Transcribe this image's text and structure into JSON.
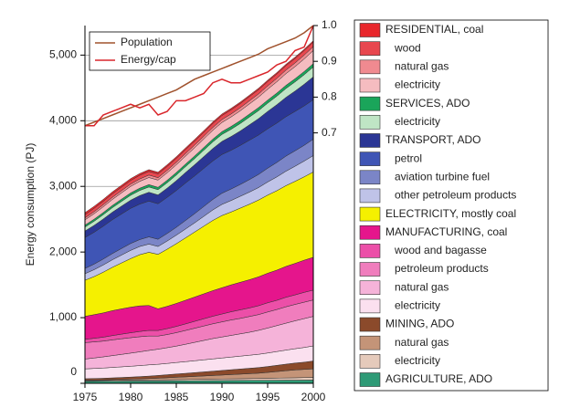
{
  "chart_data": {
    "type": "stacked_area",
    "y_label": "Energy consumption (PJ)",
    "x": [
      1975,
      1976,
      1977,
      1978,
      1979,
      1980,
      1981,
      1982,
      1983,
      1984,
      1985,
      1986,
      1987,
      1988,
      1989,
      1990,
      1991,
      1992,
      1993,
      1994,
      1995,
      1996,
      1997,
      1998,
      1999,
      2000
    ],
    "xlim": [
      1975,
      2000
    ],
    "xticks": [
      1975,
      1980,
      1985,
      1990,
      1995,
      2000
    ],
    "ylim": [
      0,
      5450
    ],
    "yticks": [
      0,
      {
        "value": 1000,
        "label": "1,000"
      },
      {
        "value": 2000,
        "label": "2,000"
      },
      {
        "value": 3000,
        "label": "3,000"
      },
      {
        "value": 4000,
        "label": "4,000"
      },
      {
        "value": 5000,
        "label": "5,000"
      }
    ],
    "y2lim": [
      0,
      1
    ],
    "y2ticks": [
      0.7,
      0.8,
      0.9,
      {
        "value": 1,
        "label": "1.0"
      }
    ],
    "grid": true,
    "series": [
      {
        "name": "RESIDENTIAL, coal",
        "color": "#e8262b",
        "values": [
          30,
          30,
          29,
          29,
          28,
          28,
          27,
          27,
          26,
          26,
          25,
          25,
          25,
          24,
          24,
          23,
          23,
          23,
          22,
          22,
          22,
          21,
          21,
          21,
          20,
          20
        ]
      },
      {
        "name": "wood",
        "color": "#e8474f",
        "values": [
          50,
          51,
          52,
          53,
          54,
          55,
          56,
          56,
          57,
          58,
          58,
          59,
          60,
          60,
          61,
          62,
          63,
          63,
          64,
          65,
          66,
          67,
          68,
          68,
          69,
          70
        ]
      },
      {
        "name": "natural gas",
        "color": "#f08a90",
        "values": [
          30,
          31,
          32,
          33,
          34,
          35,
          36,
          37,
          37,
          38,
          39,
          40,
          41,
          42,
          43,
          44,
          45,
          46,
          47,
          48,
          50,
          52,
          54,
          56,
          58,
          60
        ]
      },
      {
        "name": "electricity",
        "color": "#f5bcc0",
        "values": [
          80,
          84,
          88,
          92,
          96,
          100,
          104,
          108,
          110,
          114,
          118,
          122,
          126,
          130,
          135,
          140,
          145,
          150,
          155,
          160,
          166,
          172,
          178,
          184,
          192,
          200
        ]
      },
      {
        "name": "SERVICES, ADO",
        "color": "#1aa55a",
        "values": [
          30,
          31,
          32,
          33,
          34,
          35,
          35,
          36,
          36,
          37,
          38,
          38,
          39,
          40,
          41,
          42,
          43,
          44,
          45,
          46,
          46,
          47,
          48,
          48,
          49,
          50
        ]
      },
      {
        "name": "electricity",
        "color": "#bfe5c5",
        "values": [
          60,
          63,
          66,
          69,
          72,
          75,
          78,
          80,
          80,
          83,
          86,
          90,
          94,
          98,
          102,
          106,
          110,
          114,
          118,
          122,
          126,
          130,
          135,
          140,
          145,
          150
        ]
      },
      {
        "name": "TRANSPORT, ADO",
        "color": "#2b3695",
        "values": [
          100,
          105,
          110,
          115,
          120,
          125,
          130,
          135,
          135,
          140,
          150,
          160,
          170,
          180,
          190,
          200,
          210,
          220,
          235,
          250,
          265,
          280,
          295,
          310,
          330,
          350
        ]
      },
      {
        "name": "petrol",
        "color": "#3f55b5",
        "values": [
          470,
          485,
          500,
          515,
          525,
          535,
          540,
          545,
          540,
          550,
          560,
          570,
          575,
          580,
          585,
          590,
          590,
          595,
          600,
          600,
          600,
          600,
          600,
          600,
          600,
          600
        ]
      },
      {
        "name": "aviation turbine fuel",
        "color": "#7b85c7",
        "values": [
          80,
          85,
          90,
          95,
          100,
          105,
          105,
          110,
          110,
          115,
          120,
          130,
          140,
          150,
          160,
          170,
          175,
          180,
          190,
          200,
          210,
          220,
          230,
          235,
          240,
          250
        ]
      },
      {
        "name": "other petroleum products",
        "color": "#bfc3e8",
        "values": [
          100,
          105,
          110,
          115,
          120,
          125,
          125,
          125,
          120,
          125,
          130,
          135,
          140,
          150,
          160,
          170,
          175,
          180,
          185,
          190,
          200,
          210,
          220,
          230,
          240,
          250
        ]
      },
      {
        "name": "ELECTRICITY, mostly coal",
        "color": "#f5f000",
        "values": [
          550,
          580,
          620,
          660,
          700,
          740,
          780,
          810,
          830,
          870,
          910,
          950,
          990,
          1030,
          1070,
          1100,
          1110,
          1130,
          1150,
          1170,
          1190,
          1210,
          1230,
          1250,
          1270,
          1300
        ]
      },
      {
        "name": "MANUFACTURING, coal",
        "color": "#e5158c",
        "values": [
          350,
          360,
          370,
          380,
          385,
          390,
          390,
          380,
          330,
          340,
          350,
          360,
          370,
          380,
          390,
          400,
          410,
          420,
          430,
          440,
          450,
          460,
          470,
          480,
          490,
          500
        ]
      },
      {
        "name": "wood and bagasse",
        "color": "#ec4fa8",
        "values": [
          50,
          55,
          60,
          65,
          70,
          75,
          80,
          85,
          85,
          90,
          95,
          100,
          105,
          110,
          115,
          120,
          125,
          130,
          130,
          135,
          140,
          140,
          145,
          145,
          150,
          150
        ]
      },
      {
        "name": "petroleum products",
        "color": "#f07dbd",
        "values": [
          250,
          245,
          240,
          240,
          238,
          235,
          230,
          220,
          200,
          200,
          205,
          210,
          215,
          220,
          225,
          230,
          235,
          235,
          240,
          240,
          245,
          245,
          250,
          250,
          250,
          250
        ]
      },
      {
        "name": "natural gas",
        "color": "#f5b3d9",
        "values": [
          150,
          160,
          170,
          180,
          190,
          200,
          210,
          220,
          230,
          240,
          250,
          265,
          280,
          295,
          310,
          320,
          330,
          340,
          350,
          365,
          380,
          395,
          410,
          425,
          440,
          450
        ]
      },
      {
        "name": "electricity",
        "color": "#fbe0ef",
        "values": [
          150,
          153,
          156,
          159,
          162,
          165,
          168,
          171,
          170,
          172,
          175,
          178,
          181,
          184,
          187,
          190,
          193,
          196,
          199,
          202,
          206,
          210,
          214,
          218,
          224,
          230
        ]
      },
      {
        "name": "MINING, ADO",
        "color": "#8b4a2b",
        "values": [
          20,
          22,
          24,
          26,
          28,
          30,
          34,
          38,
          42,
          46,
          50,
          54,
          58,
          62,
          66,
          70,
          74,
          78,
          82,
          86,
          90,
          95,
          100,
          105,
          110,
          120
        ]
      },
      {
        "name": "natural gas",
        "color": "#c49478",
        "values": [
          10,
          10,
          10,
          12,
          14,
          16,
          18,
          20,
          25,
          30,
          35,
          40,
          45,
          50,
          55,
          60,
          65,
          70,
          75,
          80,
          90,
          100,
          110,
          120,
          125,
          130
        ]
      },
      {
        "name": "electricity",
        "color": "#e5cabb",
        "values": [
          10,
          10,
          11,
          12,
          13,
          14,
          15,
          16,
          17,
          18,
          19,
          20,
          21,
          22,
          23,
          24,
          25,
          26,
          27,
          28,
          30,
          32,
          34,
          36,
          38,
          40
        ]
      },
      {
        "name": "AGRICULTURE, ADO",
        "color": "#2e9a76",
        "values": [
          30,
          31,
          32,
          33,
          34,
          35,
          35,
          36,
          36,
          37,
          38,
          38,
          39,
          40,
          41,
          42,
          43,
          44,
          45,
          46,
          46,
          47,
          48,
          48,
          49,
          50
        ]
      }
    ],
    "lines": [
      {
        "name": "Population",
        "color": "#a0522d",
        "axis": "y2",
        "values": [
          0.72,
          0.73,
          0.74,
          0.75,
          0.76,
          0.77,
          0.78,
          0.79,
          0.8,
          0.81,
          0.82,
          0.835,
          0.85,
          0.86,
          0.87,
          0.88,
          0.89,
          0.9,
          0.91,
          0.92,
          0.935,
          0.945,
          0.955,
          0.965,
          0.98,
          1.0
        ]
      },
      {
        "name": "Energy/cap",
        "color": "#d9262b",
        "axis": "y2",
        "values": [
          0.72,
          0.72,
          0.75,
          0.76,
          0.77,
          0.78,
          0.77,
          0.78,
          0.75,
          0.76,
          0.79,
          0.79,
          0.8,
          0.81,
          0.84,
          0.85,
          0.84,
          0.84,
          0.85,
          0.86,
          0.87,
          0.89,
          0.9,
          0.93,
          0.94,
          1.0
        ]
      }
    ]
  }
}
